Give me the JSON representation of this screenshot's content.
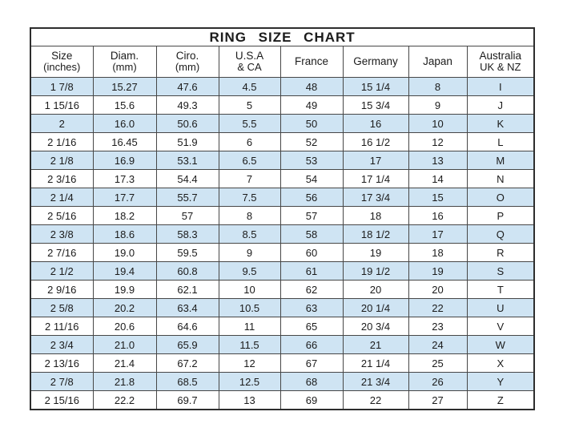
{
  "title": "RING SIZE CHART",
  "colors": {
    "row_highlight": "#cfe4f3",
    "border": "#474747",
    "outer_border": "#2d2d2d",
    "text": "#1b1b1b",
    "background": "#ffffff"
  },
  "chart_data": {
    "type": "table",
    "title": "RING SIZE CHART",
    "layout": {
      "striping": "alternate rows highlighted light blue, starting with first data row",
      "grid": "on",
      "header_rows": 2
    },
    "columns": [
      {
        "key": "size-inches",
        "label": "Size",
        "sub": "(inches)"
      },
      {
        "key": "diam-mm",
        "label": "Diam.",
        "sub": "(mm)"
      },
      {
        "key": "ciro-mm",
        "label": "Ciro.",
        "sub": "(mm)"
      },
      {
        "key": "usa-ca",
        "label": "U.S.A",
        "sub": "& CA"
      },
      {
        "key": "france",
        "label": "France",
        "sub": ""
      },
      {
        "key": "germany",
        "label": "Germany",
        "sub": ""
      },
      {
        "key": "japan",
        "label": "Japan",
        "sub": ""
      },
      {
        "key": "australia-uk-nz",
        "label": "Australia",
        "sub": "UK & NZ"
      }
    ],
    "rows": [
      [
        "1 7/8",
        "15.27",
        "47.6",
        "4.5",
        "48",
        "15 1/4",
        "8",
        "I"
      ],
      [
        "1 15/16",
        "15.6",
        "49.3",
        "5",
        "49",
        "15 3/4",
        "9",
        "J"
      ],
      [
        "2",
        "16.0",
        "50.6",
        "5.5",
        "50",
        "16",
        "10",
        "K"
      ],
      [
        "2 1/16",
        "16.45",
        "51.9",
        "6",
        "52",
        "16 1/2",
        "12",
        "L"
      ],
      [
        "2 1/8",
        "16.9",
        "53.1",
        "6.5",
        "53",
        "17",
        "13",
        "M"
      ],
      [
        "2 3/16",
        "17.3",
        "54.4",
        "7",
        "54",
        "17 1/4",
        "14",
        "N"
      ],
      [
        "2 1/4",
        "17.7",
        "55.7",
        "7.5",
        "56",
        "17 3/4",
        "15",
        "O"
      ],
      [
        "2 5/16",
        "18.2",
        "57",
        "8",
        "57",
        "18",
        "16",
        "P"
      ],
      [
        "2 3/8",
        "18.6",
        "58.3",
        "8.5",
        "58",
        "18 1/2",
        "17",
        "Q"
      ],
      [
        "2 7/16",
        "19.0",
        "59.5",
        "9",
        "60",
        "19",
        "18",
        "R"
      ],
      [
        "2 1/2",
        "19.4",
        "60.8",
        "9.5",
        "61",
        "19 1/2",
        "19",
        "S"
      ],
      [
        "2 9/16",
        "19.9",
        "62.1",
        "10",
        "62",
        "20",
        "20",
        "T"
      ],
      [
        "2 5/8",
        "20.2",
        "63.4",
        "10.5",
        "63",
        "20 1/4",
        "22",
        "U"
      ],
      [
        "2 11/16",
        "20.6",
        "64.6",
        "11",
        "65",
        "20 3/4",
        "23",
        "V"
      ],
      [
        "2 3/4",
        "21.0",
        "65.9",
        "11.5",
        "66",
        "21",
        "24",
        "W"
      ],
      [
        "2 13/16",
        "21.4",
        "67.2",
        "12",
        "67",
        "21 1/4",
        "25",
        "X"
      ],
      [
        "2 7/8",
        "21.8",
        "68.5",
        "12.5",
        "68",
        "21 3/4",
        "26",
        "Y"
      ],
      [
        "2 15/16",
        "22.2",
        "69.7",
        "13",
        "69",
        "22",
        "27",
        "Z"
      ]
    ]
  }
}
